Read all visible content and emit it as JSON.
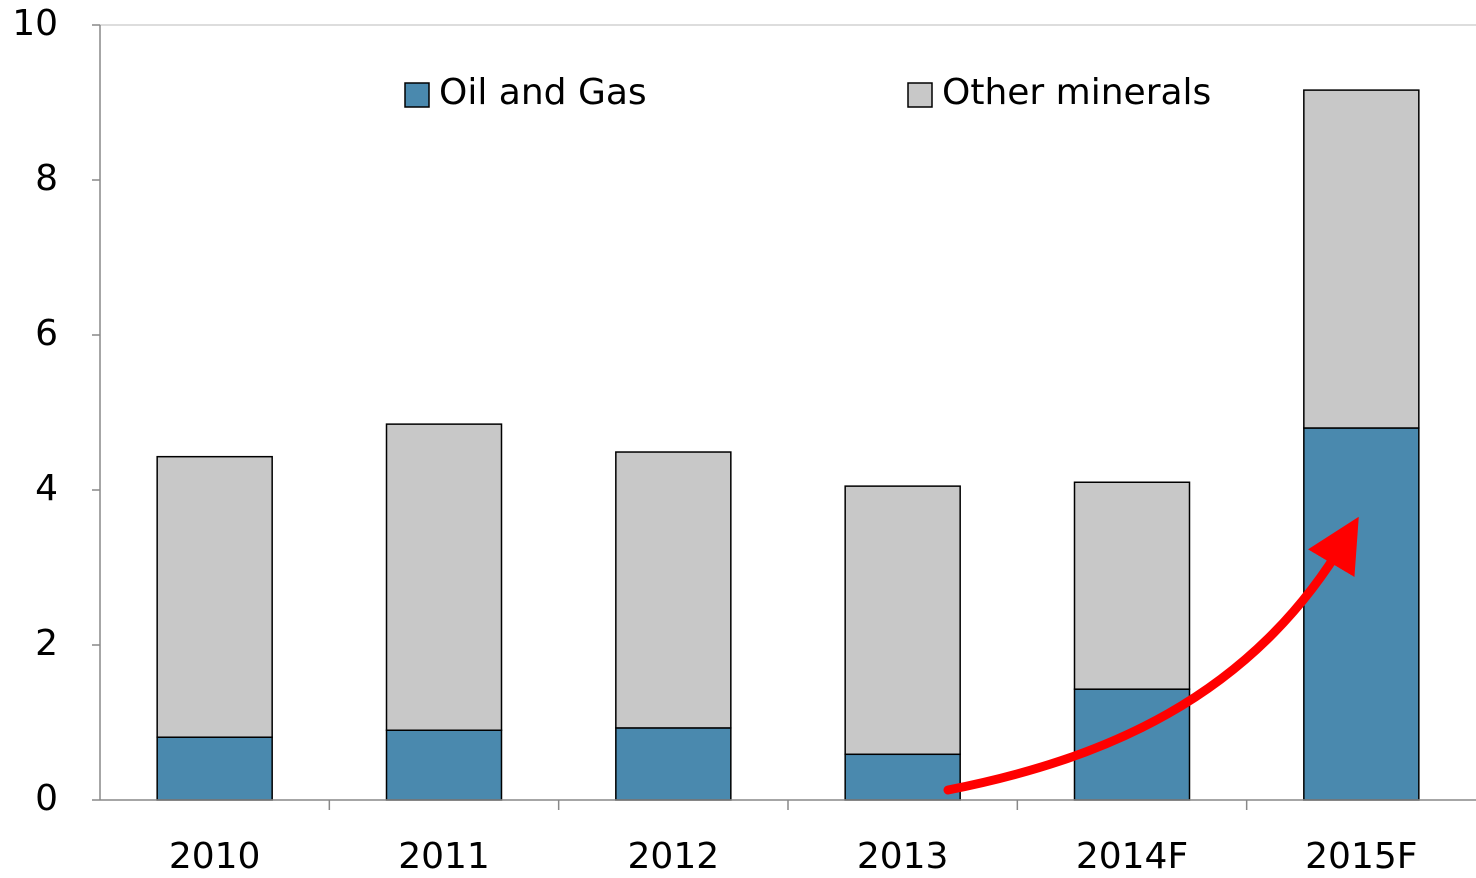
{
  "chart_data": {
    "type": "stacked_bar",
    "categories": [
      "2010",
      "2011",
      "2012",
      "2013",
      "2014F",
      "2015F"
    ],
    "series": [
      {
        "name": "Oil and Gas",
        "color": "#4a89ae",
        "values": [
          0.81,
          0.9,
          0.93,
          0.59,
          1.43,
          4.8
        ]
      },
      {
        "name": "Other minerals",
        "color": "#c8c8c8",
        "values": [
          3.62,
          3.95,
          3.56,
          3.46,
          2.67,
          4.36
        ]
      }
    ],
    "ylim": [
      0,
      10
    ],
    "yticks": [
      0,
      2,
      4,
      6,
      8,
      10
    ],
    "grid": false,
    "legend": "top"
  }
}
